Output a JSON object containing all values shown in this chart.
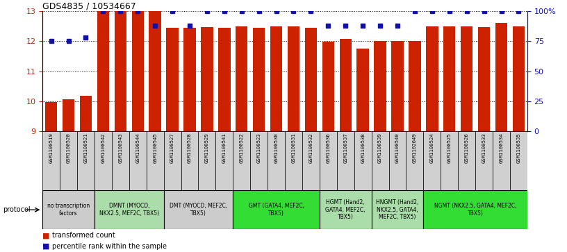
{
  "title": "GDS4835 / 10534667",
  "samples": [
    "GSM1100519",
    "GSM1100520",
    "GSM1100521",
    "GSM1100542",
    "GSM1100543",
    "GSM1100544",
    "GSM1100545",
    "GSM1100527",
    "GSM1100528",
    "GSM1100529",
    "GSM1100541",
    "GSM1100522",
    "GSM1100523",
    "GSM1100530",
    "GSM1100531",
    "GSM1100532",
    "GSM1100536",
    "GSM1100537",
    "GSM1100538",
    "GSM1100539",
    "GSM1100540",
    "GSM1102649",
    "GSM1100524",
    "GSM1100525",
    "GSM1100526",
    "GSM1100533",
    "GSM1100534",
    "GSM1100535"
  ],
  "bar_values": [
    9.98,
    10.05,
    10.18,
    13.0,
    13.0,
    13.0,
    13.0,
    12.45,
    12.45,
    12.48,
    12.45,
    12.5,
    12.45,
    12.5,
    12.5,
    12.45,
    11.98,
    12.08,
    11.75,
    12.0,
    12.0,
    12.0,
    12.5,
    12.5,
    12.5,
    12.48,
    12.62,
    12.5
  ],
  "percentile_values": [
    75,
    75,
    78,
    100,
    100,
    100,
    88,
    100,
    88,
    100,
    100,
    100,
    100,
    100,
    100,
    100,
    88,
    88,
    88,
    88,
    88,
    100,
    100,
    100,
    100,
    100,
    100,
    100
  ],
  "ylim_left": [
    9,
    13
  ],
  "ylim_right": [
    0,
    100
  ],
  "yticks_left": [
    9,
    10,
    11,
    12,
    13
  ],
  "yticks_right": [
    0,
    25,
    50,
    75,
    100
  ],
  "bar_color": "#cc2200",
  "dot_color": "#1111aa",
  "protocols": [
    {
      "label": "no transcription\nfactors",
      "start": 0,
      "end": 3,
      "color": "#cccccc"
    },
    {
      "label": "DMNT (MYOCD,\nNKX2.5, MEF2C, TBX5)",
      "start": 3,
      "end": 7,
      "color": "#aaddaa"
    },
    {
      "label": "DMT (MYOCD, MEF2C,\nTBX5)",
      "start": 7,
      "end": 11,
      "color": "#cccccc"
    },
    {
      "label": "GMT (GATA4, MEF2C,\nTBX5)",
      "start": 11,
      "end": 16,
      "color": "#33dd33"
    },
    {
      "label": "HGMT (Hand2,\nGATA4, MEF2C,\nTBX5)",
      "start": 16,
      "end": 19,
      "color": "#aaddaa"
    },
    {
      "label": "HNGMT (Hand2,\nNKX2.5, GATA4,\nMEF2C, TBX5)",
      "start": 19,
      "end": 22,
      "color": "#aaddaa"
    },
    {
      "label": "NGMT (NKX2.5, GATA4, MEF2C,\nTBX5)",
      "start": 22,
      "end": 28,
      "color": "#33dd33"
    }
  ],
  "legend_transformed": "transformed count",
  "legend_percentile": "percentile rank within the sample",
  "protocol_label": "protocol"
}
